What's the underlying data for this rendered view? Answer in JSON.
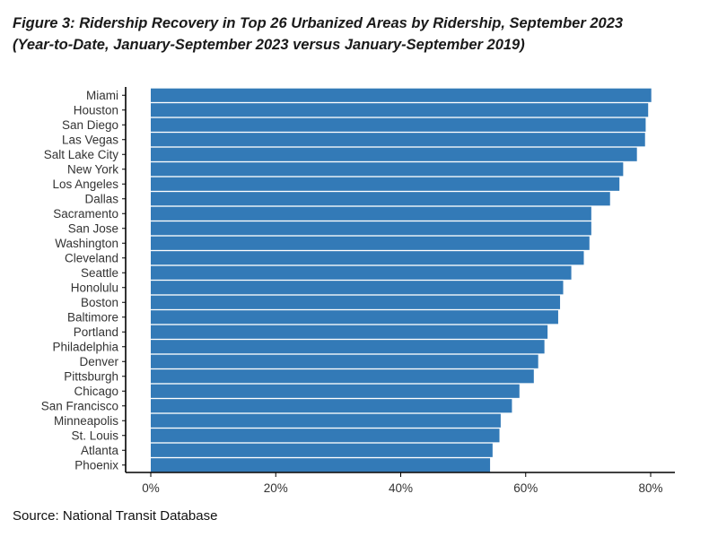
{
  "title_line1": "Figure 3: Ridership Recovery in Top 26 Urbanized Areas by Ridership, September 2023",
  "title_line2": "(Year-to-Date, January-September 2023 versus January-September 2019)",
  "source": "Source: National Transit Database",
  "colors": {
    "bar": "#337ab7",
    "axis": "#000000",
    "text": "#333333"
  },
  "chart_data": {
    "type": "bar",
    "orientation": "horizontal",
    "title": "Figure 3: Ridership Recovery in Top 26 Urbanized Areas by Ridership, September 2023",
    "subtitle": "(Year-to-Date, January-September 2023 versus January-September 2019)",
    "xlabel": "",
    "ylabel": "",
    "xlim": [
      0,
      0.8
    ],
    "xticks": [
      0,
      0.2,
      0.4,
      0.6,
      0.8
    ],
    "xtick_labels": [
      "0%",
      "20%",
      "40%",
      "60%",
      "80%"
    ],
    "grid": false,
    "categories": [
      "Miami",
      "Houston",
      "San Diego",
      "Las Vegas",
      "Salt Lake City",
      "New York",
      "Los Angeles",
      "Dallas",
      "Sacramento",
      "San Jose",
      "Washington",
      "Cleveland",
      "Seattle",
      "Honolulu",
      "Boston",
      "Baltimore",
      "Portland",
      "Philadelphia",
      "Denver",
      "Pittsburgh",
      "Chicago",
      "San Francisco",
      "Minneapolis",
      "St. Louis",
      "Atlanta",
      "Phoenix"
    ],
    "values": [
      0.801,
      0.796,
      0.792,
      0.791,
      0.778,
      0.756,
      0.75,
      0.735,
      0.705,
      0.705,
      0.702,
      0.693,
      0.673,
      0.66,
      0.655,
      0.652,
      0.635,
      0.63,
      0.62,
      0.613,
      0.59,
      0.578,
      0.56,
      0.558,
      0.547,
      0.543
    ]
  }
}
